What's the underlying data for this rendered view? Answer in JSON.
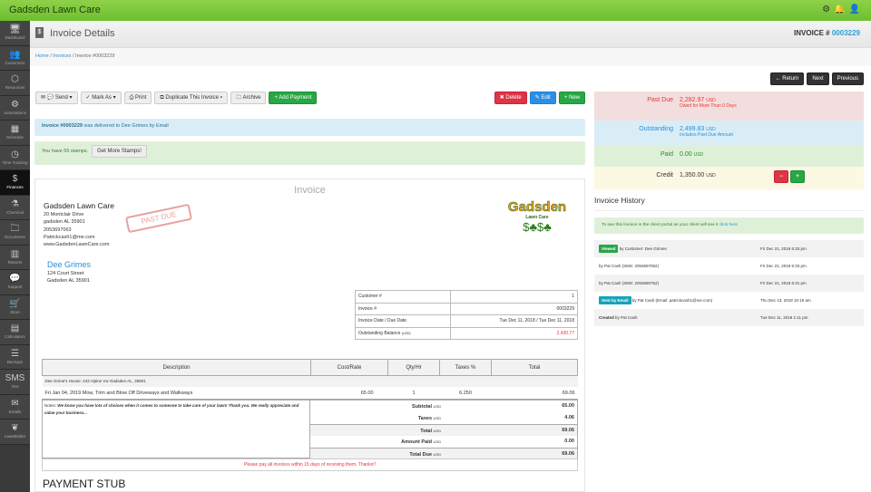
{
  "app": {
    "title": "Gadsden Lawn Care",
    "top_icons": [
      "gear-icon",
      "bell-icon",
      "user-icon"
    ]
  },
  "sidebar": {
    "items": [
      {
        "label": "Dashboard",
        "icon": "🖥"
      },
      {
        "label": "Customers",
        "icon": "👥"
      },
      {
        "label": "Resources",
        "icon": "⬡"
      },
      {
        "label": "Automations",
        "icon": "⚙"
      },
      {
        "label": "Schedule",
        "icon": "▦"
      },
      {
        "label": "Time Tracking",
        "icon": "◷"
      },
      {
        "label": "Finances",
        "icon": "$"
      },
      {
        "label": "Chemical",
        "icon": "⚗"
      },
      {
        "label": "Documents",
        "icon": "🗀"
      },
      {
        "label": "Reports",
        "icon": "▥"
      },
      {
        "label": "Support",
        "icon": "💬"
      },
      {
        "label": "Store",
        "icon": "🛒"
      },
      {
        "label": "Calculators",
        "icon": "▤"
      },
      {
        "label": "Backups",
        "icon": "☰"
      },
      {
        "label": "Text",
        "icon": "SMS"
      },
      {
        "label": "Emails",
        "icon": "✉"
      },
      {
        "label": "LawnBidder",
        "icon": "❦"
      }
    ]
  },
  "header": {
    "title": "Invoice Details",
    "invoice_label": "INVOICE #",
    "invoice_number": "0003229"
  },
  "breadcrumb": {
    "home": "Home",
    "invoices": "Invoices",
    "current": "Invoice #0003229"
  },
  "nav": {
    "return": "← Return",
    "next": "Next",
    "previous": "Previous"
  },
  "toolbar": {
    "send": "✉ 💬 Send ▾",
    "mark_as": "✓ Mark As ▾",
    "print": "⎙ Print",
    "duplicate": "⧉ Duplicate This Invoice ▾",
    "archive": "🗀 Archive",
    "add_payment": "+ Add Payment",
    "delete": "✖ Delete",
    "edit": "✎ Edit",
    "new": "+ New"
  },
  "alerts": {
    "delivered_bold": "Invoice #0003229",
    "delivered_rest": " was delivered to Dee Grimes by Email",
    "stamps": "You have 55 stamps.",
    "stamps_button": "Get More Stamps!"
  },
  "summary": {
    "past_due": {
      "label": "Past Due",
      "value": "2,282.97",
      "currency": "USD",
      "note": "Owed for More Than 0 Days"
    },
    "outstanding": {
      "label": "Outstanding",
      "value": "2,499.83",
      "currency": "USD",
      "note": "Includes Past Due Amount"
    },
    "paid": {
      "label": "Paid",
      "value": "0.00",
      "currency": "USD"
    },
    "credit": {
      "label": "Credit",
      "value": "1,350.00",
      "currency": "USD",
      "minus": "−",
      "plus": "+"
    }
  },
  "history": {
    "title": "Invoice History",
    "portal_text": "To see this invoice in the client portal as your client will see it ",
    "portal_link": "click here",
    "rows": [
      {
        "badge": "Viewed",
        "text": " by Customer: Dee Grimes",
        "time": "Fri Dec 21, 2018 6:33 pm"
      },
      {
        "badge": "",
        "text": "by Pat Cash (SMS: 2053697052)",
        "time": "Fri Dec 21, 2018 6:33 pm"
      },
      {
        "badge": "",
        "text": "by Pat Cash (SMS: 2053690752)",
        "time": "Fri Dec 21, 2018 6:31 pm"
      },
      {
        "badge": "Sent by Email",
        "text": " by Pat Cash (Email: patrickcash1@me.com)",
        "time": "Thu Dec 13, 2018 10:16 am"
      },
      {
        "badge": "",
        "bold": "Created",
        "text": " by Pat Cash",
        "time": "Tue Dec 11, 2018 1:11 pm"
      }
    ]
  },
  "invoice": {
    "heading": "Invoice",
    "stamp": "PAST DUE",
    "company": {
      "name": "Gadsden Lawn Care",
      "address": "20 Montclair Drive",
      "city": "gadsden AL 35901",
      "phone": "2053697063",
      "email": "Patrickcash1@me.com",
      "web": "www.GadsdenLawnCare.com",
      "logo_text": "Gadsden",
      "logo_sub": "Lawn Care"
    },
    "client": {
      "name": "Dee Grimes",
      "address": "124 Court Street",
      "city": "Gadsden AL 35901"
    },
    "details": [
      {
        "label": "Customer #",
        "value": "1"
      },
      {
        "label": "Invoice #",
        "value": "0003229"
      },
      {
        "label": "Invoice Date / Due Date",
        "value": "Tue Dec 11, 2018 / Tue Dec 11, 2018"
      },
      {
        "label": "Outstanding Balance",
        "unit": "(USD)",
        "value": "2,430.77"
      }
    ],
    "columns": [
      "Description",
      "Cost/Rate",
      "Qty/Hr",
      "Taxes %",
      "Total"
    ],
    "property": "Dee Grime's House: 243 Alpine Vw Gadsden AL, 35901",
    "line": {
      "description": "Fri Jan 04, 2019 Mow, Trim and Blow Off Driveways and Walkways",
      "rate": "65.00",
      "qty": "1",
      "tax": "6.250",
      "total": "69.06"
    },
    "notes_label": "Notes:",
    "notes": "We know you have lots of choices when it comes to someone to take care of your lawn! Thank you. We really appreciate and value your business...",
    "totals": [
      {
        "label": "Subtotal",
        "value": "65.00"
      },
      {
        "label": "Taxes",
        "value": "4.06"
      },
      {
        "label": "Total",
        "value": "69.06"
      },
      {
        "label": "Amount Paid",
        "value": "0.00"
      },
      {
        "label": "Total Due",
        "value": "69.06"
      }
    ],
    "currency": "USD",
    "footer": "Please pay all invoices within 15 days of receiving them. Thanks!!",
    "payment_stub": "PAYMENT STUB"
  }
}
